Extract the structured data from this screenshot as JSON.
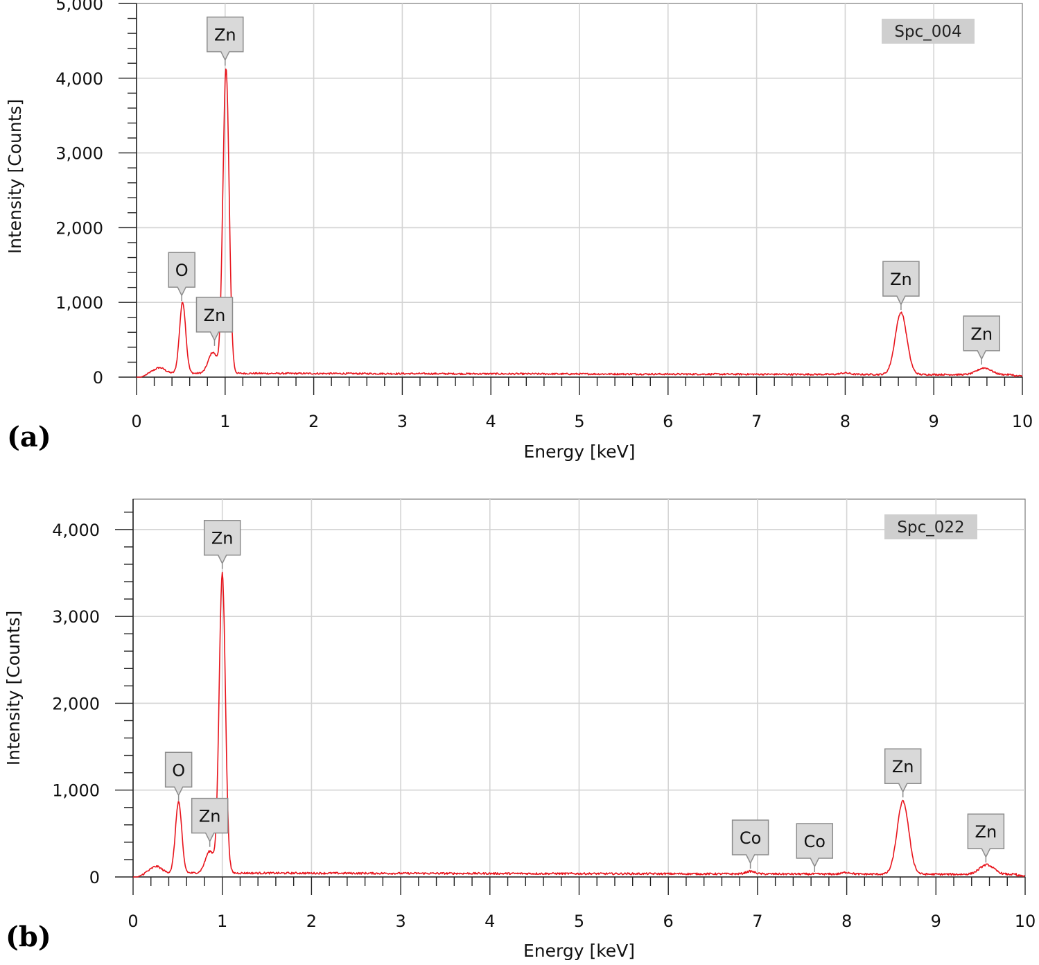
{
  "chart_data": [
    {
      "type": "line",
      "panel_label": "(a)",
      "spectrum_label": "Spc_004",
      "xlabel": "Energy [keV]",
      "ylabel": "Intensity [Counts]",
      "xlim": [
        0,
        10
      ],
      "ylim": [
        0,
        5000
      ],
      "x_ticks": [
        "0",
        "1",
        "2",
        "3",
        "4",
        "5",
        "6",
        "7",
        "8",
        "9",
        "10"
      ],
      "y_ticks": [
        {
          "value": 0,
          "label": "0"
        },
        {
          "value": 1000,
          "label": "1,000"
        },
        {
          "value": 2000,
          "label": "2,000"
        },
        {
          "value": 3000,
          "label": "3,000"
        },
        {
          "value": 4000,
          "label": "4,000"
        },
        {
          "value": 5000,
          "label": "5,000"
        }
      ],
      "grid": true,
      "line_color": "#e8141c",
      "baseline": 50,
      "peaks": [
        {
          "x": 0.26,
          "height": 75,
          "width": 0.06
        },
        {
          "x": 0.52,
          "height": 950,
          "width": 0.035
        },
        {
          "x": 0.86,
          "height": 280,
          "width": 0.05
        },
        {
          "x": 1.01,
          "height": 4080,
          "width": 0.035
        },
        {
          "x": 8.0,
          "height": 20,
          "width": 0.05
        },
        {
          "x": 8.63,
          "height": 830,
          "width": 0.065
        },
        {
          "x": 9.57,
          "height": 90,
          "width": 0.08
        }
      ],
      "annotations": [
        {
          "label": "O",
          "x": 0.51,
          "y": 1000
        },
        {
          "label": "Zn",
          "x": 0.88,
          "y": 400
        },
        {
          "label": "Zn",
          "x": 1.0,
          "y": 4150
        },
        {
          "label": "Zn",
          "x": 8.63,
          "y": 880
        },
        {
          "label": "Zn",
          "x": 9.54,
          "y": 150
        }
      ]
    },
    {
      "type": "line",
      "panel_label": "(b)",
      "spectrum_label": "Spc_022",
      "xlabel": "Energy [keV]",
      "ylabel": "Intensity [Counts]",
      "xlim": [
        0,
        10
      ],
      "ylim": [
        0,
        4350
      ],
      "x_ticks": [
        "0",
        "1",
        "2",
        "3",
        "4",
        "5",
        "6",
        "7",
        "8",
        "9",
        "10"
      ],
      "y_ticks": [
        {
          "value": 0,
          "label": "0"
        },
        {
          "value": 1000,
          "label": "1,000"
        },
        {
          "value": 2000,
          "label": "2,000"
        },
        {
          "value": 3000,
          "label": "3,000"
        },
        {
          "value": 4000,
          "label": "4,000"
        }
      ],
      "grid": true,
      "line_color": "#e8141c",
      "baseline": 45,
      "peaks": [
        {
          "x": 0.26,
          "height": 75,
          "width": 0.06
        },
        {
          "x": 0.51,
          "height": 820,
          "width": 0.035
        },
        {
          "x": 0.86,
          "height": 250,
          "width": 0.05
        },
        {
          "x": 1.0,
          "height": 3450,
          "width": 0.035
        },
        {
          "x": 6.92,
          "height": 30,
          "width": 0.05
        },
        {
          "x": 8.0,
          "height": 20,
          "width": 0.05
        },
        {
          "x": 8.63,
          "height": 840,
          "width": 0.065
        },
        {
          "x": 9.57,
          "height": 110,
          "width": 0.08
        }
      ],
      "annotations": [
        {
          "label": "O",
          "x": 0.51,
          "y": 860
        },
        {
          "label": "Zn",
          "x": 0.86,
          "y": 330
        },
        {
          "label": "Zn",
          "x": 1.0,
          "y": 3530
        },
        {
          "label": "Co",
          "x": 6.92,
          "y": 80
        },
        {
          "label": "Co",
          "x": 7.64,
          "y": 40
        },
        {
          "label": "Zn",
          "x": 8.63,
          "y": 900
        },
        {
          "label": "Zn",
          "x": 9.56,
          "y": 150
        }
      ]
    }
  ]
}
